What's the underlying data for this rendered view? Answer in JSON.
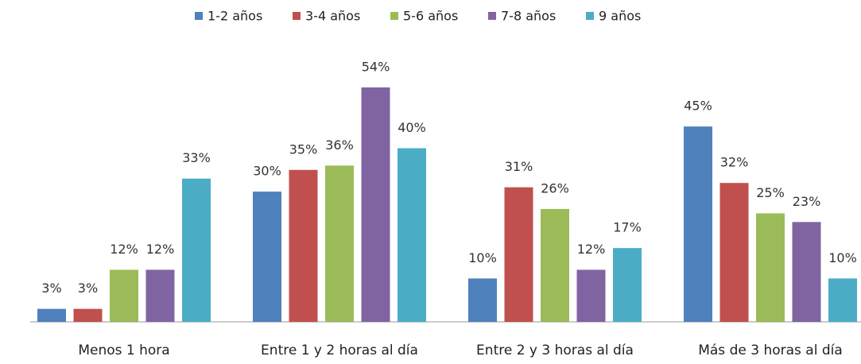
{
  "chart_data": {
    "type": "bar",
    "categories": [
      "Menos 1 hora",
      "Entre 1 y 2 horas al día",
      "Entre 2 y 3 horas al día",
      "Más de 3 horas al día"
    ],
    "series": [
      {
        "name": "1-2 años",
        "color": "#4f81bd",
        "values": [
          3,
          30,
          10,
          45
        ],
        "value_labels": [
          "3%",
          "30%",
          "10%",
          "45%"
        ]
      },
      {
        "name": "3-4 años",
        "color": "#c0504d",
        "values": [
          3,
          35,
          31,
          32
        ],
        "value_labels": [
          "3%",
          "35%",
          "31%",
          "32%"
        ]
      },
      {
        "name": "5-6 años",
        "color": "#9bbb59",
        "values": [
          12,
          36,
          26,
          25
        ],
        "value_labels": [
          "12%",
          "36%",
          "26%",
          "25%"
        ]
      },
      {
        "name": "7-8 años",
        "color": "#8064a2",
        "values": [
          12,
          54,
          12,
          23
        ],
        "value_labels": [
          "12%",
          "54%",
          "12%",
          "23%"
        ]
      },
      {
        "name": "9 años",
        "color": "#4bacc6",
        "values": [
          33,
          40,
          17,
          10
        ],
        "value_labels": [
          "33%",
          "40%",
          "17%",
          "10%"
        ]
      }
    ],
    "legend": "top"
  }
}
